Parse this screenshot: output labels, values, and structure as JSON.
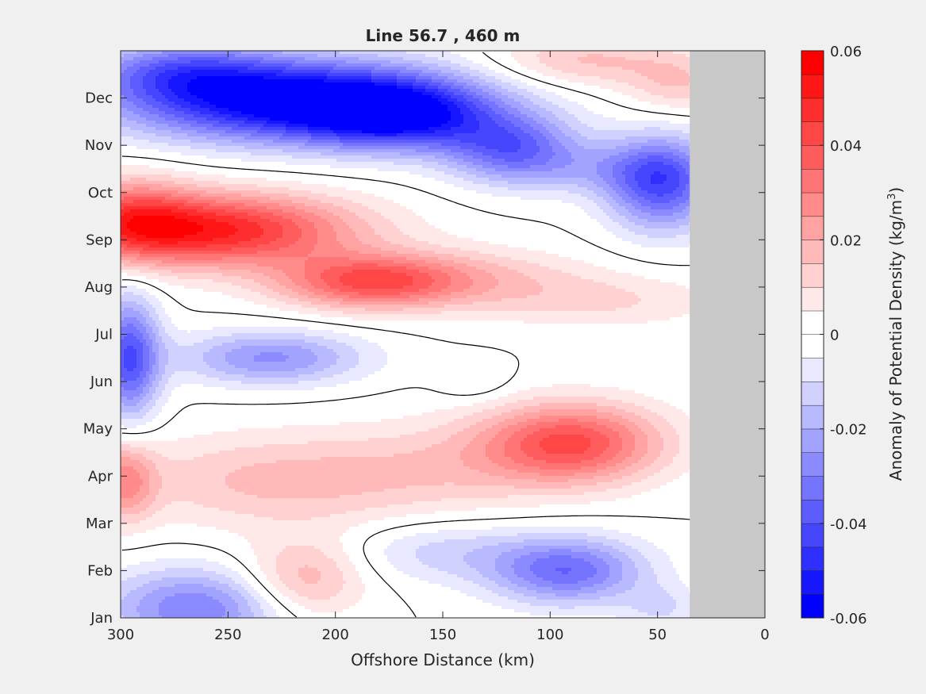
{
  "chart_data": {
    "type": "heatmap",
    "title": "Line 56.7 , 460 m",
    "xlabel": "Offshore Distance (km)",
    "colorbar_label_main": "Anomaly of Potential Density (kg/m",
    "colorbar_label_exp": "3",
    "colorbar_label_close": ")",
    "xlim": [
      300,
      0
    ],
    "x_reversed": true,
    "x_ticks": [
      300,
      250,
      200,
      150,
      100,
      50,
      0
    ],
    "x_tick_labels": [
      "300",
      "250",
      "200",
      "150",
      "100",
      "50",
      "0"
    ],
    "y_months": [
      "Jan",
      "Feb",
      "Mar",
      "Apr",
      "May",
      "Jun",
      "Jul",
      "Aug",
      "Sep",
      "Oct",
      "Nov",
      "Dec"
    ],
    "clim": [
      -0.06,
      0.06
    ],
    "colorbar_levels": 24,
    "colorbar_ticks": [
      0.06,
      0.04,
      0.02,
      0,
      -0.02,
      -0.04,
      -0.06
    ],
    "colorbar_tick_labels": [
      "0.06",
      "0.04",
      "0.02",
      "0",
      "-0.02",
      "-0.04",
      "-0.06"
    ],
    "land_mask_x_max": 35,
    "land_color": "#c8c8c8",
    "color_positive": "#ff0000",
    "color_negative": "#0000ff",
    "color_zero": "#ffffff",
    "contour_level": 0,
    "anomaly_centers": [
      {
        "x": 220,
        "month": 10.95,
        "value": -0.062,
        "sx": 55,
        "sy": 0.6
      },
      {
        "x": 170,
        "month": 10.6,
        "value": -0.038,
        "sx": 30,
        "sy": 0.5
      },
      {
        "x": 272,
        "month": 11.6,
        "value": -0.025,
        "sx": 30,
        "sy": 0.45
      },
      {
        "x": 118,
        "month": 9.95,
        "value": -0.032,
        "sx": 22,
        "sy": 0.5
      },
      {
        "x": 80,
        "month": 9.5,
        "value": -0.012,
        "sx": 30,
        "sy": 0.4
      },
      {
        "x": 48,
        "month": 9.2,
        "value": -0.04,
        "sx": 18,
        "sy": 0.7
      },
      {
        "x": 255,
        "month": 8.2,
        "value": 0.05,
        "sx": 45,
        "sy": 0.55
      },
      {
        "x": 295,
        "month": 8.5,
        "value": 0.025,
        "sx": 20,
        "sy": 0.6
      },
      {
        "x": 185,
        "month": 7.1,
        "value": 0.035,
        "sx": 30,
        "sy": 0.4
      },
      {
        "x": 140,
        "month": 7.2,
        "value": 0.014,
        "sx": 40,
        "sy": 0.45
      },
      {
        "x": 75,
        "month": 6.7,
        "value": 0.01,
        "sx": 40,
        "sy": 0.4
      },
      {
        "x": 85,
        "month": 11.8,
        "value": 0.016,
        "sx": 30,
        "sy": 0.4
      },
      {
        "x": 40,
        "month": 11.3,
        "value": 0.014,
        "sx": 18,
        "sy": 0.45
      },
      {
        "x": 230,
        "month": 5.5,
        "value": -0.026,
        "sx": 30,
        "sy": 0.4
      },
      {
        "x": 296,
        "month": 5.5,
        "value": -0.04,
        "sx": 10,
        "sy": 0.9
      },
      {
        "x": 135,
        "month": 5.0,
        "value": -0.006,
        "sx": 12,
        "sy": 0.3
      },
      {
        "x": 90,
        "month": 3.7,
        "value": 0.04,
        "sx": 30,
        "sy": 0.6
      },
      {
        "x": 230,
        "month": 2.9,
        "value": 0.016,
        "sx": 50,
        "sy": 0.7
      },
      {
        "x": 298,
        "month": 2.9,
        "value": 0.024,
        "sx": 10,
        "sy": 0.6
      },
      {
        "x": 150,
        "month": 3.2,
        "value": 0.01,
        "sx": 40,
        "sy": 0.7
      },
      {
        "x": 215,
        "month": 0.8,
        "value": 0.02,
        "sx": 20,
        "sy": 0.6
      },
      {
        "x": 92,
        "month": 1.0,
        "value": -0.034,
        "sx": 25,
        "sy": 0.5
      },
      {
        "x": 150,
        "month": 1.4,
        "value": -0.012,
        "sx": 30,
        "sy": 0.45
      },
      {
        "x": 265,
        "month": 0.2,
        "value": -0.03,
        "sx": 30,
        "sy": 0.6
      },
      {
        "x": 48,
        "month": 0.2,
        "value": -0.01,
        "sx": 12,
        "sy": 0.35
      }
    ]
  }
}
